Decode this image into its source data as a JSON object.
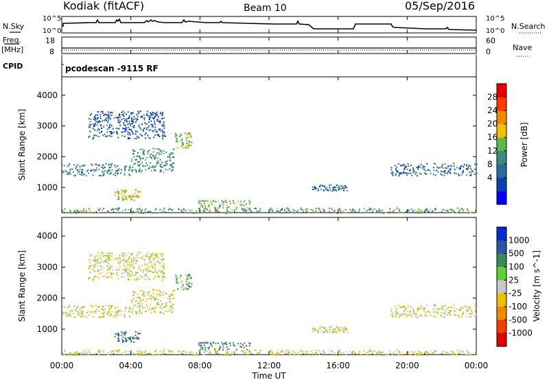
{
  "header": {
    "station": "Kodiak (fitACF)",
    "beam": "Beam 10",
    "date": "05/Sep/2016"
  },
  "noise_panel": {
    "left_label": "N.Sky",
    "right_label": "N.Search",
    "left_ticks": [
      "10^5",
      "10^0"
    ],
    "right_ticks": [
      "10^5",
      "10^0"
    ]
  },
  "freq_panel": {
    "left_label_line1": "Freq.",
    "left_label_line2": "[MHz]",
    "left_ticks": [
      "18",
      "8"
    ],
    "right_label": "Nave",
    "right_ticks": [
      "60",
      "0"
    ]
  },
  "cpid_panel": {
    "label": "CPID",
    "value": "pcodescan -9115 RF"
  },
  "power_panel": {
    "ylabel": "Slant Range [km]",
    "yticks": [
      "4000",
      "3000",
      "2000",
      "1000"
    ],
    "colorbar_label": "Power [dB]",
    "colorbar_ticks": [
      "28",
      "24",
      "20",
      "16",
      "12",
      "8",
      "4"
    ],
    "colors": [
      "#0000ff",
      "#0a3fb0",
      "#2a6aa0",
      "#3a8a7a",
      "#5fb84a",
      "#f2c200",
      "#f08a00",
      "#ff3a00",
      "#e60000"
    ]
  },
  "velocity_panel": {
    "ylabel": "Slant Range [km]",
    "yticks": [
      "4000",
      "3000",
      "2000",
      "1000"
    ],
    "colorbar_label": "Velocity [m s^-1]",
    "colorbar_ticks": [
      "1000",
      "500",
      "100",
      "25",
      "-25",
      "-100",
      "-500",
      "-1000"
    ],
    "colors": [
      "#0a2acc",
      "#2a55a8",
      "#3a8a5a",
      "#5fcf3a",
      "#c8c8c8",
      "#f0c000",
      "#f08a00",
      "#f04000",
      "#e00000"
    ]
  },
  "xaxis": {
    "label": "Time UT",
    "ticks": [
      "00:00",
      "04:00",
      "08:00",
      "12:00",
      "16:00",
      "20:00",
      "00:00"
    ]
  },
  "chart_data": {
    "type": "heatmap",
    "title": "Kodiak (fitACF) Beam 10 05/Sep/2016",
    "xlabel": "Time UT",
    "ylabel": "Slant Range [km]",
    "xlim": [
      0,
      24
    ],
    "ylim": [
      180,
      4600
    ],
    "echo_regions": [
      {
        "t": [
          0.0,
          4.0
        ],
        "range": [
          1400,
          1800
        ],
        "power_db": 12,
        "velocity": -25
      },
      {
        "t": [
          4.0,
          6.5
        ],
        "range": [
          1500,
          2300
        ],
        "power_db": 14,
        "velocity": -25
      },
      {
        "t": [
          6.5,
          7.5
        ],
        "range": [
          2300,
          2800
        ],
        "power_db": 18,
        "velocity": 25
      },
      {
        "t": [
          3.0,
          4.5
        ],
        "range": [
          600,
          950
        ],
        "power_db": 22,
        "velocity": 100
      },
      {
        "t": [
          1.5,
          6.0
        ],
        "range": [
          2600,
          3500
        ],
        "power_db": 8,
        "velocity": -25
      },
      {
        "t": [
          7.8,
          11.0
        ],
        "range": [
          350,
          600
        ],
        "power_db": 18,
        "velocity": 100
      },
      {
        "t": [
          14.5,
          16.5
        ],
        "range": [
          900,
          1100
        ],
        "power_db": 10,
        "velocity": -25
      },
      {
        "t": [
          19.0,
          24.0
        ],
        "range": [
          1400,
          1800
        ],
        "power_db": 10,
        "velocity": -25
      },
      {
        "t": [
          0.0,
          24.0
        ],
        "range": [
          180,
          350
        ],
        "power_db": 16,
        "velocity": -25
      }
    ]
  }
}
